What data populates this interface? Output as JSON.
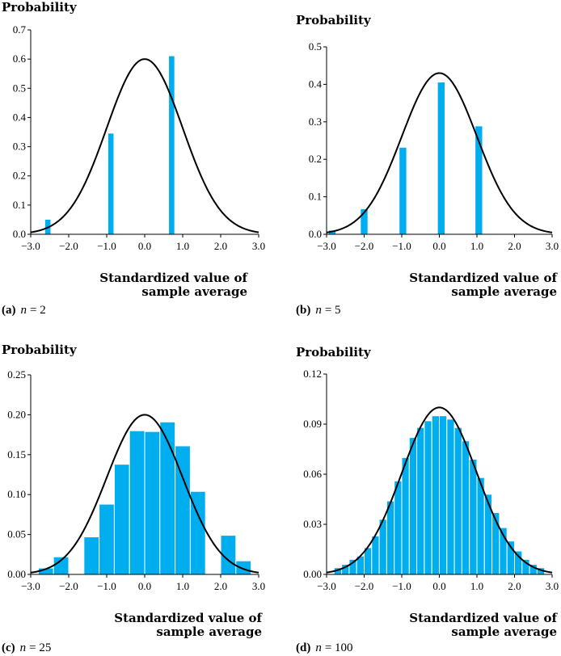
{
  "colors": {
    "bar": "#00aeef",
    "curve": "#000000",
    "axis": "#000000"
  },
  "chart_data": [
    {
      "type": "bar",
      "caption": {
        "letter": "(a)",
        "var": "n",
        "eq": "= 2"
      },
      "ylabel": "Probability",
      "xlabel": [
        "Standardized value of",
        "sample average"
      ],
      "xlim": [
        -3.0,
        3.0
      ],
      "ylim": [
        0,
        0.7
      ],
      "xticks": [
        "−3.0",
        "−2.0",
        "−1.0",
        "0.0",
        "1.0",
        "2.0",
        "3.0"
      ],
      "yticks": [
        "0.0",
        "0.1",
        "0.2",
        "0.3",
        "0.4",
        "0.5",
        "0.6",
        "0.7"
      ],
      "bar_width": 0.14,
      "bars": [
        {
          "x": -2.55,
          "y": 0.05
        },
        {
          "x": -0.89,
          "y": 0.345
        },
        {
          "x": 0.71,
          "y": 0.61
        }
      ],
      "curve_peak": 0.6
    },
    {
      "type": "bar",
      "caption": {
        "letter": "(b)",
        "var": "n",
        "eq": "= 5"
      },
      "ylabel": "Probability",
      "xlabel": [
        "Standardized value of",
        "sample average"
      ],
      "xlim": [
        -3.0,
        3.0
      ],
      "ylim": [
        0,
        0.5
      ],
      "xticks": [
        "−3.0",
        "−2.0",
        "−1.0",
        "0.0",
        "1.0",
        "2.0",
        "3.0"
      ],
      "yticks": [
        "0.0",
        "0.1",
        "0.2",
        "0.3",
        "0.4",
        "0.5"
      ],
      "bar_width": 0.18,
      "bars": [
        {
          "x": -2.85,
          "y": 0.01
        },
        {
          "x": -2.0,
          "y": 0.067
        },
        {
          "x": -0.97,
          "y": 0.231
        },
        {
          "x": 0.05,
          "y": 0.405
        },
        {
          "x": 1.05,
          "y": 0.288
        }
      ],
      "curve_peak": 0.43
    },
    {
      "type": "bar",
      "caption": {
        "letter": "(c)",
        "var": "n",
        "eq": "= 25"
      },
      "ylabel": "Probability",
      "xlabel": [
        "Standardized value of",
        "sample average"
      ],
      "xlim": [
        -3.0,
        3.0
      ],
      "ylim": [
        0,
        0.25
      ],
      "xticks": [
        "−3.0",
        "−2.0",
        "−1.0",
        "0.0",
        "1.0",
        "2.0",
        "3.0"
      ],
      "yticks": [
        "0.00",
        "0.05",
        "0.10",
        "0.15",
        "0.20",
        "0.25"
      ],
      "bar_width": 0.4,
      "bars": [
        {
          "x": -2.6,
          "y": 0.008
        },
        {
          "x": -2.2,
          "y": 0.022
        },
        {
          "x": -1.4,
          "y": 0.047
        },
        {
          "x": -1.0,
          "y": 0.088
        },
        {
          "x": -0.6,
          "y": 0.138
        },
        {
          "x": -0.2,
          "y": 0.18
        },
        {
          "x": 0.2,
          "y": 0.179
        },
        {
          "x": 0.6,
          "y": 0.191
        },
        {
          "x": 1.0,
          "y": 0.161
        },
        {
          "x": 1.4,
          "y": 0.104
        },
        {
          "x": 2.2,
          "y": 0.049
        },
        {
          "x": 2.6,
          "y": 0.017
        }
      ],
      "curve_peak": 0.2
    },
    {
      "type": "bar",
      "caption": {
        "letter": "(d)",
        "var": "n",
        "eq": "= 100"
      },
      "ylabel": "Probability",
      "xlabel": [
        "Standardized value of",
        "sample average"
      ],
      "xlim": [
        -3.0,
        3.0
      ],
      "ylim": [
        0,
        0.12
      ],
      "xticks": [
        "−3.0",
        "−2.0",
        "−1.0",
        "0.0",
        "1.0",
        "2.0",
        "3.0"
      ],
      "yticks": [
        "0.00",
        "0.03",
        "0.06",
        "0.09",
        "0.12"
      ],
      "bar_width": 0.2,
      "bars": [
        {
          "x": -2.7,
          "y": 0.004
        },
        {
          "x": -2.5,
          "y": 0.006
        },
        {
          "x": -2.3,
          "y": 0.009
        },
        {
          "x": -2.1,
          "y": 0.011
        },
        {
          "x": -1.9,
          "y": 0.016
        },
        {
          "x": -1.7,
          "y": 0.023
        },
        {
          "x": -1.5,
          "y": 0.033
        },
        {
          "x": -1.3,
          "y": 0.044
        },
        {
          "x": -1.1,
          "y": 0.056
        },
        {
          "x": -0.9,
          "y": 0.07
        },
        {
          "x": -0.7,
          "y": 0.082
        },
        {
          "x": -0.5,
          "y": 0.088
        },
        {
          "x": -0.3,
          "y": 0.092
        },
        {
          "x": -0.1,
          "y": 0.095
        },
        {
          "x": 0.1,
          "y": 0.095
        },
        {
          "x": 0.3,
          "y": 0.093
        },
        {
          "x": 0.5,
          "y": 0.088
        },
        {
          "x": 0.7,
          "y": 0.08
        },
        {
          "x": 0.9,
          "y": 0.069
        },
        {
          "x": 1.1,
          "y": 0.058
        },
        {
          "x": 1.3,
          "y": 0.048
        },
        {
          "x": 1.5,
          "y": 0.037
        },
        {
          "x": 1.7,
          "y": 0.028
        },
        {
          "x": 1.9,
          "y": 0.02
        },
        {
          "x": 2.1,
          "y": 0.014
        },
        {
          "x": 2.3,
          "y": 0.009
        },
        {
          "x": 2.5,
          "y": 0.006
        },
        {
          "x": 2.7,
          "y": 0.004
        }
      ],
      "curve_peak": 0.1
    }
  ]
}
